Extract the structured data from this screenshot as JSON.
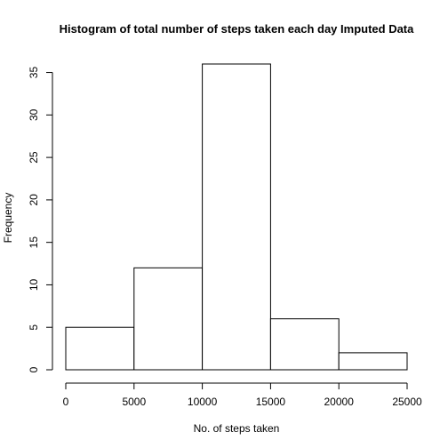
{
  "chart_data": {
    "type": "bar",
    "title": "Histogram of total number of steps taken each day Imputed Data",
    "xlabel": "No. of steps taken",
    "ylabel": "Frequency",
    "bins": [
      {
        "from": 0,
        "to": 5000,
        "count": 5
      },
      {
        "from": 5000,
        "to": 10000,
        "count": 12
      },
      {
        "from": 10000,
        "to": 15000,
        "count": 36
      },
      {
        "from": 15000,
        "to": 20000,
        "count": 6
      },
      {
        "from": 20000,
        "to": 25000,
        "count": 2
      }
    ],
    "xlim": [
      0,
      25000
    ],
    "ylim": [
      0,
      36
    ],
    "x_ticks": [
      0,
      5000,
      10000,
      15000,
      20000,
      25000
    ],
    "y_ticks": [
      0,
      5,
      10,
      15,
      20,
      25,
      30,
      35
    ],
    "grid": false,
    "legend": "none"
  }
}
